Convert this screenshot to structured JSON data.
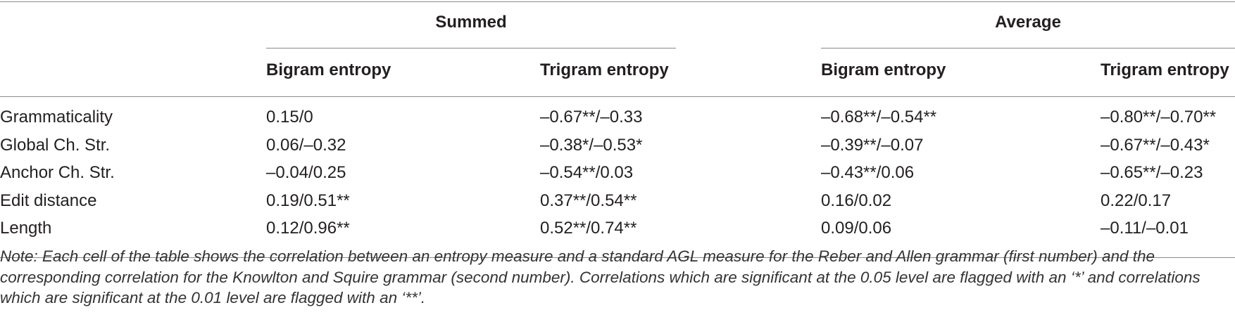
{
  "header": {
    "groups": [
      "Summed",
      "Average"
    ],
    "columns": [
      "Bigram entropy",
      "Trigram entropy",
      "Bigram entropy",
      "Trigram entropy"
    ]
  },
  "table": {
    "rows": [
      [
        "Grammaticality",
        "0.15/0",
        "–0.67**/–0.33",
        "–0.68**/–0.54**",
        "–0.80**/–0.70**"
      ],
      [
        "Global Ch. Str.",
        "0.06/–0.32",
        "–0.38*/–0.53*",
        "–0.39**/–0.07",
        "–0.67**/–0.43*"
      ],
      [
        "Anchor Ch. Str.",
        "–0.04/0.25",
        "–0.54**/0.03",
        "–0.43**/0.06",
        "–0.65**/–0.23"
      ],
      [
        "Edit distance",
        "0.19/0.51**",
        "0.37**/0.54**",
        "0.16/0.02",
        "0.22/0.17"
      ],
      [
        "Length",
        "0.12/0.96**",
        "0.52**/0.74**",
        "0.09/0.06",
        "–0.11/–0.01"
      ]
    ]
  },
  "note": "Note: Each cell of the table shows the correlation between an entropy measure and a standard AGL measure for the Reber and Allen grammar (first number) and the corresponding correlation for the Knowlton and Squire grammar (second number). Correlations which are significant at the 0.05 level are flagged with an ‘*’ and correlations which are significant at the 0.01 level are flagged with an ‘**’."
}
